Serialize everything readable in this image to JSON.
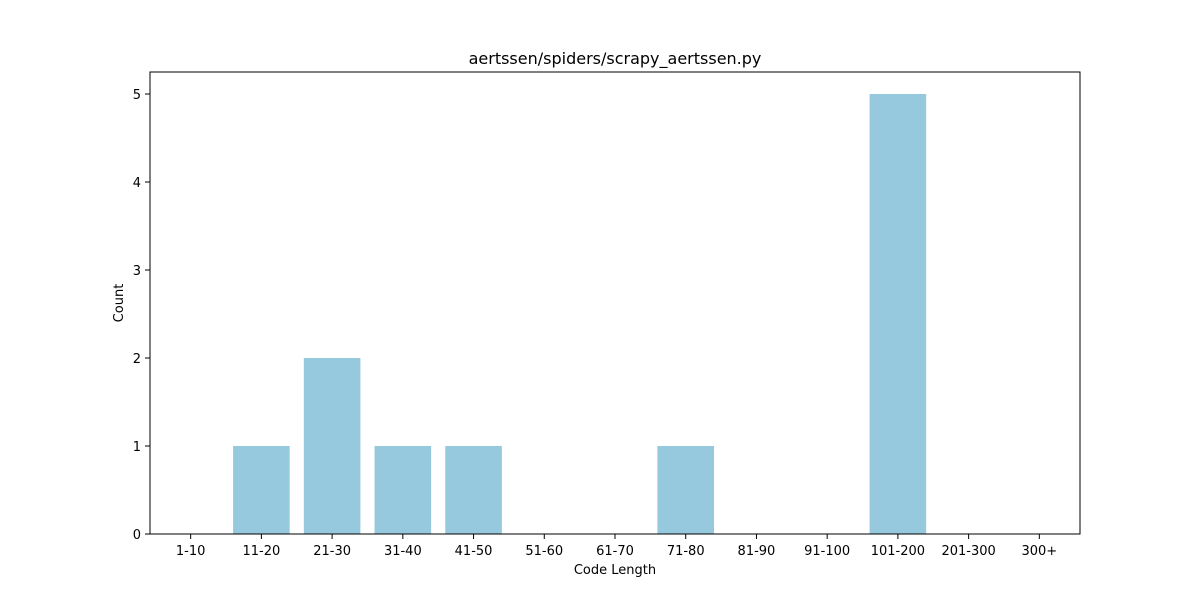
{
  "chart_data": {
    "type": "bar",
    "title": "aertssen/spiders/scrapy_aertssen.py",
    "xlabel": "Code Length",
    "ylabel": "Count",
    "categories": [
      "1-10",
      "11-20",
      "21-30",
      "31-40",
      "41-50",
      "51-60",
      "61-70",
      "71-80",
      "81-90",
      "91-100",
      "101-200",
      "201-300",
      "300+"
    ],
    "values": [
      0,
      1,
      2,
      1,
      1,
      0,
      0,
      1,
      0,
      0,
      5,
      0,
      0
    ],
    "ylim": [
      0,
      5.25
    ],
    "yticks": [
      0,
      1,
      2,
      3,
      4,
      5
    ],
    "grid": false,
    "legend": false,
    "colors": {
      "bar": "#96c9dd",
      "axis": "#000000",
      "background": "#ffffff"
    }
  }
}
